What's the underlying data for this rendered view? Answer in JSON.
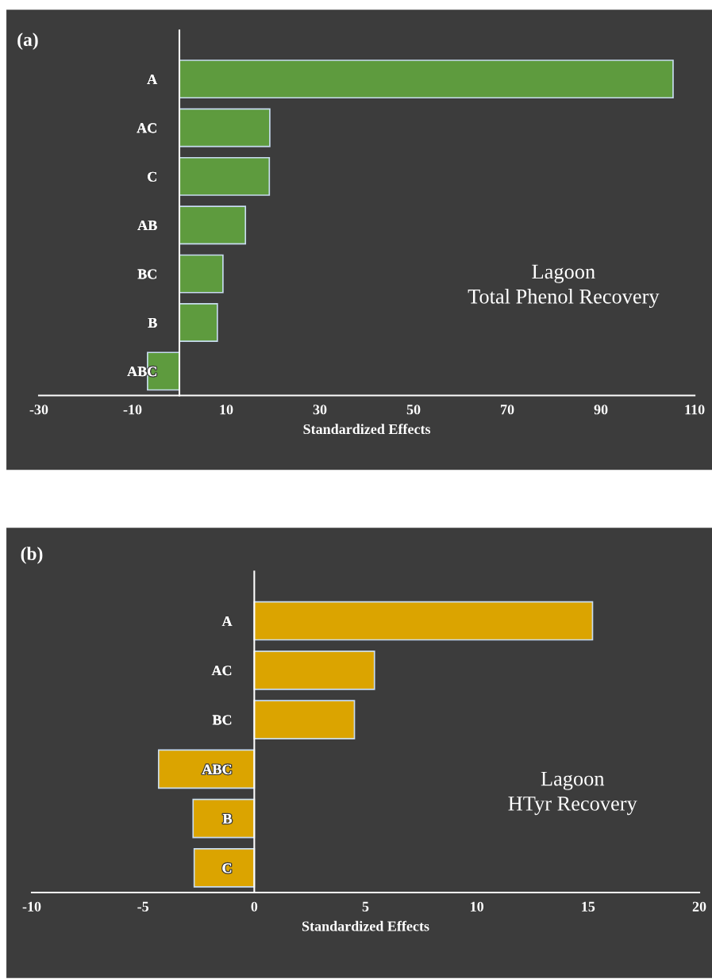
{
  "chart_data": [
    {
      "type": "bar",
      "orientation": "horizontal",
      "title": "(a)",
      "xlabel": "Standardized Effects",
      "categories": [
        "A",
        "AC",
        "C",
        "AB",
        "BC",
        "B",
        "ABC"
      ],
      "values": [
        105.4,
        19.3,
        19.2,
        14.1,
        9.3,
        8.1,
        -6.8
      ],
      "color": "#5e9b3e",
      "xlim": [
        -30,
        110
      ],
      "xticks": [
        -30,
        -10,
        10,
        30,
        50,
        70,
        90,
        110
      ],
      "grid": false,
      "legend": false,
      "annotations": [
        "Lagoon\nTotal Phenol Recovery"
      ]
    },
    {
      "type": "bar",
      "orientation": "horizontal",
      "title": "(b)",
      "xlabel": "Standardized Effects",
      "categories": [
        "A",
        "AC",
        "BC",
        "ABC",
        "B",
        "C"
      ],
      "values": [
        15.2,
        5.4,
        4.5,
        -4.3,
        -2.75,
        -2.7
      ],
      "color": "#dba400",
      "xlim": [
        -10,
        20
      ],
      "xticks": [
        -10,
        -5,
        0,
        5,
        10,
        15,
        20
      ],
      "grid": false,
      "legend": false,
      "annotations": [
        "Lagoon\nHTyr Recovery"
      ]
    }
  ]
}
